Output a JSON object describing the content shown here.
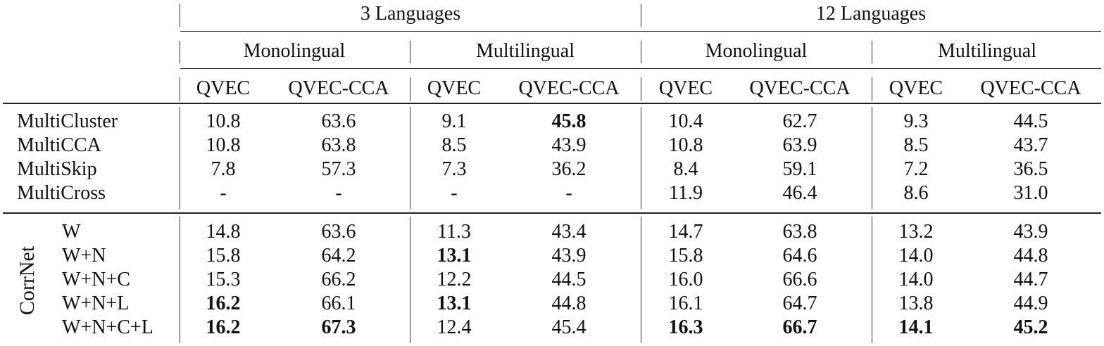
{
  "header": {
    "groups": [
      "3 Languages",
      "12 Languages"
    ],
    "subgroups": [
      "Monolingual",
      "Multilingual",
      "Monolingual",
      "Multilingual"
    ],
    "metrics": [
      "QVEC",
      "QVEC-CCA",
      "QVEC",
      "QVEC-CCA",
      "QVEC",
      "QVEC-CCA",
      "QVEC",
      "QVEC-CCA"
    ]
  },
  "baselines": [
    {
      "name": "MultiCluster",
      "values": [
        "10.8",
        "63.6",
        "9.1",
        "45.8",
        "10.4",
        "62.7",
        "9.3",
        "44.5"
      ],
      "bold": [
        false,
        false,
        false,
        true,
        false,
        false,
        false,
        false
      ]
    },
    {
      "name": "MultiCCA",
      "values": [
        "10.8",
        "63.8",
        "8.5",
        "43.9",
        "10.8",
        "63.9",
        "8.5",
        "43.7"
      ],
      "bold": [
        false,
        false,
        false,
        false,
        false,
        false,
        false,
        false
      ]
    },
    {
      "name": "MultiSkip",
      "values": [
        "7.8",
        "57.3",
        "7.3",
        "36.2",
        "8.4",
        "59.1",
        "7.2",
        "36.5"
      ],
      "bold": [
        false,
        false,
        false,
        false,
        false,
        false,
        false,
        false
      ]
    },
    {
      "name": "MultiCross",
      "values": [
        "-",
        "-",
        "-",
        "-",
        "11.9",
        "46.4",
        "8.6",
        "31.0"
      ],
      "bold": [
        false,
        false,
        false,
        false,
        false,
        false,
        false,
        false
      ]
    }
  ],
  "corrnet": {
    "label": "CorrNet",
    "rows": [
      {
        "name": "W",
        "values": [
          "14.8",
          "63.6",
          "11.3",
          "43.4",
          "14.7",
          "63.8",
          "13.2",
          "43.9"
        ],
        "bold": [
          false,
          false,
          false,
          false,
          false,
          false,
          false,
          false
        ]
      },
      {
        "name": "W+N",
        "values": [
          "15.8",
          "64.2",
          "13.1",
          "43.9",
          "15.8",
          "64.6",
          "14.0",
          "44.8"
        ],
        "bold": [
          false,
          false,
          true,
          false,
          false,
          false,
          false,
          false
        ]
      },
      {
        "name": "W+N+C",
        "values": [
          "15.3",
          "66.2",
          "12.2",
          "44.5",
          "16.0",
          "66.6",
          "14.0",
          "44.7"
        ],
        "bold": [
          false,
          false,
          false,
          false,
          false,
          false,
          false,
          false
        ]
      },
      {
        "name": "W+N+L",
        "values": [
          "16.2",
          "66.1",
          "13.1",
          "44.8",
          "16.1",
          "64.7",
          "13.8",
          "44.9"
        ],
        "bold": [
          true,
          false,
          true,
          false,
          false,
          false,
          false,
          false
        ]
      },
      {
        "name": "W+N+C+L",
        "values": [
          "16.2",
          "67.3",
          "12.4",
          "45.4",
          "16.3",
          "66.7",
          "14.1",
          "45.2"
        ],
        "bold": [
          true,
          true,
          false,
          false,
          true,
          true,
          true,
          true
        ]
      }
    ]
  }
}
